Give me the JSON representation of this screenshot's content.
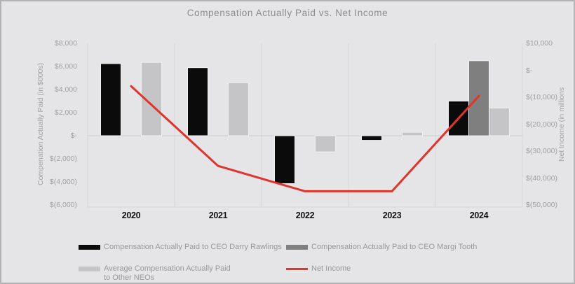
{
  "chart_data": {
    "type": "combo-bar-line",
    "title": "Compensation Actually Paid vs. Net Income",
    "categories": [
      "2020",
      "2021",
      "2022",
      "2023",
      "2024"
    ],
    "bar_series": [
      {
        "key": "ceo-darry-rawlings",
        "name": "Compensation Actually Paid to CEO Darry Rawlings",
        "color": "#0b0b0b",
        "axis": "left",
        "values": [
          6250,
          5900,
          -4150,
          -400,
          3000
        ]
      },
      {
        "key": "ceo-margi-tooth",
        "name": "Compensation Actually Paid to CEO Margi Tooth",
        "color": "#7f7f7f",
        "axis": "left",
        "values": [
          null,
          null,
          null,
          null,
          6500
        ]
      },
      {
        "key": "avg-other-neos",
        "name": "Average Compensation Actually Paid to Other NEOs",
        "color": "#c5c5c7",
        "axis": "left",
        "values": [
          6350,
          4600,
          -1400,
          300,
          2400
        ]
      }
    ],
    "line_series": [
      {
        "key": "net-income",
        "name": "Net Income",
        "color": "#e1332a",
        "axis": "right",
        "values": [
          -5900,
          -35500,
          -44900,
          -44900,
          -9500
        ]
      }
    ],
    "left_axis": {
      "label": "Compenation Actually Paid (in $000s)",
      "max": 8000,
      "min": -6000,
      "ticks": [
        "$8,000",
        "$6,000",
        "$4,000",
        "$2,000",
        "$-",
        "$(2,000)",
        "$(4,000)",
        "$(6,000)"
      ]
    },
    "right_axis": {
      "label": "Net Income (in millions",
      "max": 10000,
      "min": -50000,
      "ticks": [
        "$10,000",
        "$-",
        "$(10,000)",
        "$(20,000)",
        "$(30,000)",
        "$(40,000)",
        "$(50,000)"
      ]
    },
    "legend_position": "bottom",
    "grid": {
      "vertical_category_lines": true,
      "zero_line": true
    }
  },
  "legend": {
    "items": [
      {
        "label": "Compensation Actually Paid to CEO Darry Rawlings",
        "swatch": "black-bar"
      },
      {
        "label": "Compensation Actually Paid to CEO Margi Tooth",
        "swatch": "dark-gray-bar"
      },
      {
        "label": "Average Compensation Actually Paid\nto Other NEOs",
        "swatch": "light-gray-bar"
      },
      {
        "label": "Net Income",
        "swatch": "red-line"
      }
    ]
  },
  "colors": {
    "background": "#e5e5e7",
    "frame_border": "#b3b3b5",
    "gridline": "#d7d7d9",
    "zero_line": "#cdcdcf",
    "bar_outline": "#f0f0f1",
    "axis_text": "#a2a2a4",
    "title_text": "#8c8c8e",
    "legend_text": "#98989a",
    "year_text": "#121212"
  }
}
